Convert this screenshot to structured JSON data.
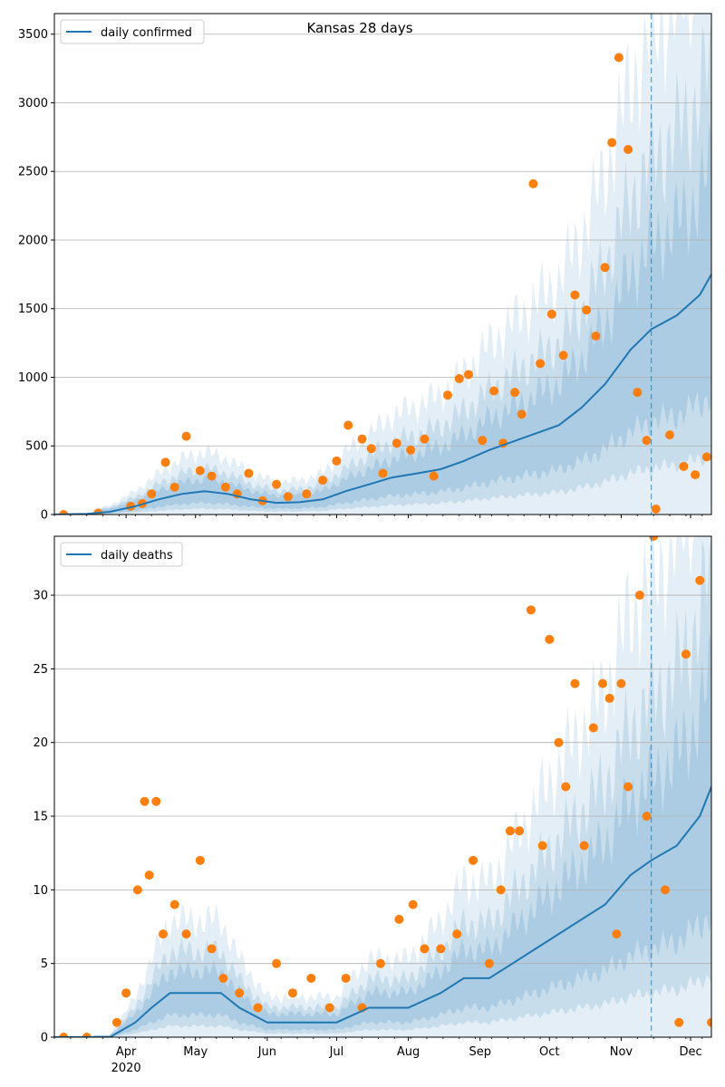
{
  "chart_data": [
    {
      "type": "line",
      "title": "Kansas 28 days",
      "xlabel": "",
      "ylabel": "",
      "xlim": [
        "2020-03-01",
        "2020-12-10"
      ],
      "ylim": [
        0,
        3650
      ],
      "yticks": [
        0,
        500,
        1000,
        1500,
        2000,
        2500,
        3000,
        3500
      ],
      "xtick_labels": [
        "Apr",
        "May",
        "Jun",
        "Jul",
        "Aug",
        "Sep",
        "Oct",
        "Nov",
        "Dec"
      ],
      "xtick_dates": [
        "2020-04-01",
        "2020-05-01",
        "2020-06-01",
        "2020-07-01",
        "2020-08-01",
        "2020-09-01",
        "2020-10-01",
        "2020-11-01",
        "2020-12-01"
      ],
      "year_label": "2020",
      "grid": "horizontal",
      "legend_position": "top-left",
      "forecast_start": "2020-11-14",
      "series": [
        {
          "name": "daily confirmed",
          "kind": "line",
          "color": "#1f77b4",
          "x": [
            "2020-03-01",
            "2020-03-15",
            "2020-03-25",
            "2020-04-05",
            "2020-04-15",
            "2020-04-25",
            "2020-05-05",
            "2020-05-15",
            "2020-05-25",
            "2020-06-05",
            "2020-06-15",
            "2020-06-25",
            "2020-07-05",
            "2020-07-15",
            "2020-07-25",
            "2020-08-05",
            "2020-08-15",
            "2020-08-25",
            "2020-09-05",
            "2020-09-15",
            "2020-09-25",
            "2020-10-05",
            "2020-10-15",
            "2020-10-25",
            "2020-11-05",
            "2020-11-14",
            "2020-11-25",
            "2020-12-05",
            "2020-12-10"
          ],
          "y": [
            0,
            5,
            20,
            60,
            110,
            150,
            170,
            150,
            110,
            85,
            90,
            110,
            170,
            220,
            270,
            300,
            330,
            390,
            470,
            530,
            590,
            650,
            780,
            950,
            1200,
            1350,
            1450,
            1600,
            1750
          ]
        },
        {
          "name": "",
          "kind": "points",
          "color": "#ff7f0e",
          "x": [
            "2020-03-05",
            "2020-03-20",
            "2020-04-03",
            "2020-04-08",
            "2020-04-12",
            "2020-04-18",
            "2020-04-22",
            "2020-04-27",
            "2020-05-03",
            "2020-05-08",
            "2020-05-14",
            "2020-05-19",
            "2020-05-24",
            "2020-05-30",
            "2020-06-05",
            "2020-06-10",
            "2020-06-18",
            "2020-06-25",
            "2020-07-01",
            "2020-07-06",
            "2020-07-12",
            "2020-07-16",
            "2020-07-21",
            "2020-07-27",
            "2020-08-02",
            "2020-08-08",
            "2020-08-12",
            "2020-08-18",
            "2020-08-23",
            "2020-08-27",
            "2020-09-02",
            "2020-09-07",
            "2020-09-11",
            "2020-09-16",
            "2020-09-19",
            "2020-09-24",
            "2020-09-27",
            "2020-10-02",
            "2020-10-07",
            "2020-10-12",
            "2020-10-17",
            "2020-10-21",
            "2020-10-25",
            "2020-10-28",
            "2020-10-31",
            "2020-11-04",
            "2020-11-08",
            "2020-11-12",
            "2020-11-16",
            "2020-11-22",
            "2020-11-28",
            "2020-12-03",
            "2020-12-08"
          ],
          "y": [
            0,
            10,
            60,
            80,
            150,
            380,
            200,
            570,
            320,
            280,
            200,
            150,
            300,
            100,
            220,
            130,
            150,
            250,
            390,
            650,
            550,
            480,
            300,
            520,
            470,
            550,
            280,
            870,
            990,
            1020,
            540,
            900,
            520,
            890,
            730,
            2410,
            1100,
            1460,
            1160,
            1600,
            1490,
            1300,
            1800,
            2710,
            3330,
            2660,
            890,
            540,
            40,
            580,
            350,
            290,
            420
          ]
        }
      ]
    },
    {
      "type": "line",
      "title": "",
      "xlabel": "",
      "ylabel": "",
      "xlim": [
        "2020-03-01",
        "2020-12-10"
      ],
      "ylim": [
        0,
        34
      ],
      "yticks": [
        0,
        5,
        10,
        15,
        20,
        25,
        30
      ],
      "xtick_labels": [
        "Apr",
        "May",
        "Jun",
        "Jul",
        "Aug",
        "Sep",
        "Oct",
        "Nov",
        "Dec"
      ],
      "xtick_dates": [
        "2020-04-01",
        "2020-05-01",
        "2020-06-01",
        "2020-07-01",
        "2020-08-01",
        "2020-09-01",
        "2020-10-01",
        "2020-11-01",
        "2020-12-01"
      ],
      "year_label": "2020",
      "grid": "horizontal",
      "legend_position": "top-left",
      "forecast_start": "2020-11-14",
      "series": [
        {
          "name": "daily deaths",
          "kind": "line",
          "color": "#1f77b4",
          "x": [
            "2020-03-01",
            "2020-03-25",
            "2020-04-05",
            "2020-04-12",
            "2020-04-20",
            "2020-05-01",
            "2020-05-12",
            "2020-05-20",
            "2020-06-01",
            "2020-06-15",
            "2020-07-01",
            "2020-07-15",
            "2020-08-01",
            "2020-08-15",
            "2020-08-25",
            "2020-09-05",
            "2020-09-15",
            "2020-09-25",
            "2020-10-05",
            "2020-10-15",
            "2020-10-25",
            "2020-11-05",
            "2020-11-14",
            "2020-11-25",
            "2020-12-05",
            "2020-12-10"
          ],
          "y": [
            0,
            0,
            1,
            2,
            3,
            3,
            3,
            2,
            1,
            1,
            1,
            2,
            2,
            3,
            4,
            4,
            5,
            6,
            7,
            8,
            9,
            11,
            12,
            13,
            15,
            17
          ]
        },
        {
          "name": "",
          "kind": "points",
          "color": "#ff7f0e",
          "x": [
            "2020-03-05",
            "2020-03-15",
            "2020-03-28",
            "2020-04-01",
            "2020-04-06",
            "2020-04-09",
            "2020-04-11",
            "2020-04-14",
            "2020-04-17",
            "2020-04-22",
            "2020-04-27",
            "2020-05-03",
            "2020-05-08",
            "2020-05-13",
            "2020-05-20",
            "2020-05-28",
            "2020-06-05",
            "2020-06-12",
            "2020-06-20",
            "2020-06-28",
            "2020-07-05",
            "2020-07-12",
            "2020-07-20",
            "2020-07-28",
            "2020-08-03",
            "2020-08-08",
            "2020-08-15",
            "2020-08-22",
            "2020-08-29",
            "2020-09-05",
            "2020-09-10",
            "2020-09-14",
            "2020-09-18",
            "2020-09-23",
            "2020-09-28",
            "2020-10-01",
            "2020-10-05",
            "2020-10-08",
            "2020-10-12",
            "2020-10-16",
            "2020-10-20",
            "2020-10-24",
            "2020-10-27",
            "2020-10-30",
            "2020-11-01",
            "2020-11-04",
            "2020-11-09",
            "2020-11-12",
            "2020-11-15",
            "2020-11-20",
            "2020-11-26",
            "2020-11-29",
            "2020-12-05",
            "2020-12-10"
          ],
          "y": [
            0,
            0,
            1,
            3,
            10,
            16,
            11,
            16,
            7,
            9,
            7,
            12,
            6,
            4,
            3,
            2,
            5,
            3,
            4,
            2,
            4,
            2,
            5,
            8,
            9,
            6,
            6,
            7,
            12,
            5,
            10,
            14,
            14,
            29,
            13,
            27,
            20,
            17,
            24,
            13,
            21,
            24,
            23,
            7,
            24,
            17,
            30,
            15,
            34,
            10,
            1,
            26,
            31,
            1
          ]
        }
      ]
    }
  ]
}
